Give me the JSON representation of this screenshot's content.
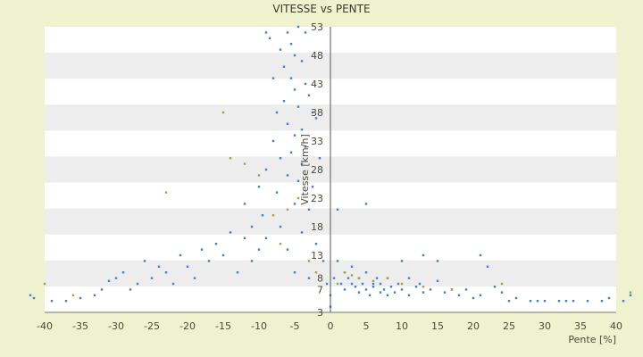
{
  "chart_data": {
    "type": "scatter",
    "title": "VITESSE vs PENTE",
    "xlabel": "Pente [%]",
    "ylabel": "Vitesse [km/h]",
    "xlim": [
      -40,
      40
    ],
    "ylim": [
      3,
      53
    ],
    "x_ticks": [
      -40,
      -35,
      -30,
      -25,
      -20,
      -15,
      -10,
      -5,
      0,
      5,
      10,
      15,
      20,
      25,
      30,
      35,
      40
    ],
    "y_ticks": [
      3,
      7,
      8,
      13,
      18,
      23,
      28,
      33,
      38,
      43,
      48,
      53
    ],
    "y_tick_labels": [
      "3",
      "7",
      "8",
      "13",
      "18",
      "23",
      "28",
      "33",
      "38",
      "43",
      "48",
      "53"
    ],
    "grid": "horizontal alternating bands",
    "legend": "none",
    "colors": {
      "primary_points": "#3b84cc",
      "secondary_points": "#a8a23a",
      "background": "#eef2cf",
      "band": "#ededed"
    },
    "series": [
      {
        "color": "#3b84cc",
        "points": [
          [
            -42,
            6
          ],
          [
            -41.5,
            5.5
          ],
          [
            -39,
            5
          ],
          [
            -37,
            5
          ],
          [
            -35,
            5.5
          ],
          [
            -33,
            6
          ],
          [
            -32,
            7
          ],
          [
            -31,
            8.5
          ],
          [
            -30,
            9
          ],
          [
            -29,
            10
          ],
          [
            -28,
            7
          ],
          [
            -27,
            8
          ],
          [
            -26,
            12
          ],
          [
            -25,
            9
          ],
          [
            -24,
            11
          ],
          [
            -23,
            10
          ],
          [
            -22,
            8
          ],
          [
            -21,
            13
          ],
          [
            -20,
            11
          ],
          [
            -19,
            9
          ],
          [
            -18,
            14
          ],
          [
            -17,
            12
          ],
          [
            -16,
            15
          ],
          [
            -15,
            13
          ],
          [
            -14,
            17
          ],
          [
            -13,
            10
          ],
          [
            -12,
            16
          ],
          [
            -12,
            22
          ],
          [
            -11,
            18
          ],
          [
            -11,
            12
          ],
          [
            -10,
            25
          ],
          [
            -10,
            14
          ],
          [
            -9.5,
            20
          ],
          [
            -9,
            28
          ],
          [
            -9,
            16
          ],
          [
            -9,
            52
          ],
          [
            -8.5,
            51
          ],
          [
            -8,
            33
          ],
          [
            -8,
            44
          ],
          [
            -7.5,
            38
          ],
          [
            -7.5,
            24
          ],
          [
            -7,
            49
          ],
          [
            -7,
            30
          ],
          [
            -7,
            18
          ],
          [
            -6.5,
            46
          ],
          [
            -6.5,
            40
          ],
          [
            -6,
            52
          ],
          [
            -6,
            36
          ],
          [
            -6,
            27
          ],
          [
            -6,
            14
          ],
          [
            -5.5,
            50
          ],
          [
            -5.5,
            44
          ],
          [
            -5.5,
            31
          ],
          [
            -5,
            48
          ],
          [
            -5,
            42
          ],
          [
            -5,
            34
          ],
          [
            -5,
            22
          ],
          [
            -5,
            10
          ],
          [
            -4.5,
            53
          ],
          [
            -4.5,
            39
          ],
          [
            -4.5,
            26
          ],
          [
            -4,
            47
          ],
          [
            -4,
            35
          ],
          [
            -4,
            29
          ],
          [
            -4,
            17
          ],
          [
            -3.5,
            52
          ],
          [
            -3.5,
            43
          ],
          [
            -3.5,
            32
          ],
          [
            -3,
            41
          ],
          [
            -3,
            21
          ],
          [
            -3,
            9
          ],
          [
            -2.5,
            38
          ],
          [
            -2.5,
            25
          ],
          [
            -2,
            37
          ],
          [
            -2,
            15
          ],
          [
            -1.5,
            30
          ],
          [
            -1,
            12
          ],
          [
            -0.5,
            8
          ],
          [
            0,
            6
          ],
          [
            0,
            4
          ],
          [
            0.5,
            9
          ],
          [
            1,
            12
          ],
          [
            1,
            21
          ],
          [
            1.5,
            8
          ],
          [
            2,
            10
          ],
          [
            2,
            7
          ],
          [
            2.5,
            9
          ],
          [
            3,
            8
          ],
          [
            3,
            11
          ],
          [
            3.5,
            7.5
          ],
          [
            4,
            9
          ],
          [
            4,
            6.5
          ],
          [
            4.5,
            8
          ],
          [
            5,
            7
          ],
          [
            5,
            10
          ],
          [
            5,
            22
          ],
          [
            5.5,
            6
          ],
          [
            6,
            8
          ],
          [
            6,
            7.5
          ],
          [
            6.5,
            9
          ],
          [
            7,
            6.5
          ],
          [
            7,
            8
          ],
          [
            7.5,
            7
          ],
          [
            8,
            6
          ],
          [
            8,
            9
          ],
          [
            8.5,
            7.5
          ],
          [
            9,
            6.5
          ],
          [
            9.5,
            8
          ],
          [
            10,
            7
          ],
          [
            10,
            12
          ],
          [
            11,
            6
          ],
          [
            11,
            9
          ],
          [
            12,
            7.5
          ],
          [
            12.5,
            8
          ],
          [
            13,
            6.5
          ],
          [
            13,
            13
          ],
          [
            14,
            7
          ],
          [
            15,
            8.5
          ],
          [
            15,
            12
          ],
          [
            16,
            6.5
          ],
          [
            17,
            7
          ],
          [
            18,
            6
          ],
          [
            19,
            7
          ],
          [
            20,
            5.5
          ],
          [
            21,
            6
          ],
          [
            21,
            13
          ],
          [
            22,
            11
          ],
          [
            23,
            7.5
          ],
          [
            24,
            6.5
          ],
          [
            25,
            5
          ],
          [
            26,
            5.5
          ],
          [
            28,
            5
          ],
          [
            29,
            5
          ],
          [
            30,
            5
          ],
          [
            32,
            5
          ],
          [
            33,
            5
          ],
          [
            34,
            5
          ],
          [
            36,
            5
          ],
          [
            38,
            5
          ],
          [
            39,
            5.5
          ],
          [
            41,
            5
          ],
          [
            42,
            6
          ]
        ]
      },
      {
        "color": "#a8a23a",
        "points": [
          [
            -40,
            8
          ],
          [
            -36,
            6
          ],
          [
            -23,
            24
          ],
          [
            -15,
            38
          ],
          [
            -14,
            30
          ],
          [
            -12,
            29
          ],
          [
            -10,
            27
          ],
          [
            -8,
            20
          ],
          [
            -7,
            15
          ],
          [
            -6,
            21
          ],
          [
            -4.5,
            23
          ],
          [
            -3,
            12
          ],
          [
            -2,
            10
          ],
          [
            1,
            8
          ],
          [
            2,
            10
          ],
          [
            3,
            9.5
          ],
          [
            4,
            9
          ],
          [
            6,
            8.5
          ],
          [
            8,
            9
          ],
          [
            10,
            8
          ],
          [
            13,
            7.5
          ],
          [
            17,
            7
          ],
          [
            24,
            8
          ],
          [
            42,
            6.5
          ]
        ]
      }
    ]
  }
}
